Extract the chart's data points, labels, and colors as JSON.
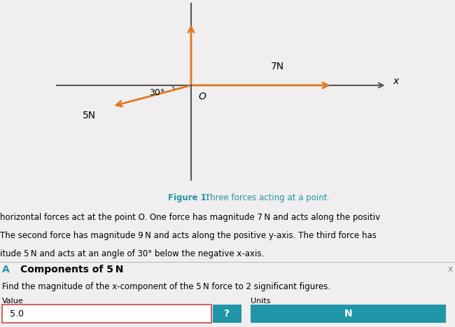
{
  "bg_light": "#f0eeee",
  "bg_white": "#ffffff",
  "bg_gray": "#e0dede",
  "arrow_color": "#e07820",
  "axis_color": "#555555",
  "caption_color": "#2196a8",
  "button_color": "#2196a8",
  "button_text_color": "#ffffff",
  "value_box_border": "#cc4444",
  "label_7N": "7N",
  "label_5N": "5N",
  "label_x": "x",
  "label_O": "O",
  "label_angle": "30°",
  "caption_bold": "Figure 1:",
  "caption_rest": " Three forces acting at a point.",
  "text_line1": "horizontal forces act at the point O. One force has magnitude 7 N and acts along the positiv",
  "text_line2": "The second force has magnitude 9 N and acts along the positive y-axis. The third force has",
  "text_line3": "itude 5 N and acts at an angle of 30° below the negative x-axis.",
  "section_A": "A",
  "section_title": "Components of 5 N",
  "question": "Find the magnitude of the x-component of the 5 N force to 2 significant figures.",
  "value_label": "Value",
  "units_label": "Units",
  "value_text": "5.0",
  "btn_q": "?",
  "btn_n": "N"
}
